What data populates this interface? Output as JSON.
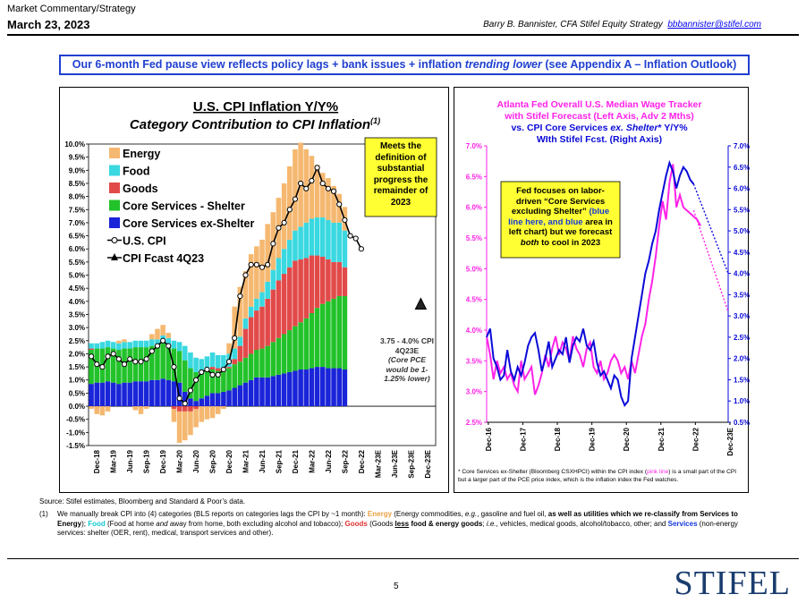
{
  "header": {
    "section": "Market Commentary/Strategy",
    "date": "March 23, 2023",
    "author": "Barry B. Bannister, CFA Stifel Equity Strategy",
    "email": "bbbannister@stifel.com"
  },
  "banner": {
    "lead": "Our 6-month Fed pause view reflects policy lags + bank issues + inflation ",
    "italic": "trending lower",
    "tail": " (see Appendix A – Inflation Outlook)"
  },
  "colors": {
    "energy": "#f5b870",
    "food": "#3ad8e0",
    "goods": "#e24a4a",
    "shelter": "#22c22a",
    "core_ex_shelter": "#1a24d8",
    "wage": "#ff22e8",
    "core_ex_shelter_line": "#0a0ad8",
    "banner": "#1f3fd0",
    "note_bg": "#ffff33"
  },
  "chart_data": [
    {
      "type": "bar",
      "stacked": true,
      "title": "U.S. CPI Inflation Y/Y%",
      "subtitle": "Category Contribution to CPI Inflation",
      "subtitle_sup": "(1)",
      "ylim": [
        -1.5,
        10.0
      ],
      "y_step": 0.5,
      "x_tick_labels": [
        "Dec-18",
        "Mar-19",
        "Jun-19",
        "Sep-19",
        "Dec-19",
        "Mar-20",
        "Jun-20",
        "Sep-20",
        "Dec-20",
        "Mar-21",
        "Jun-21",
        "Sep-21",
        "Dec-21",
        "Mar-22",
        "Jun-22",
        "Sep-22",
        "Dec-22",
        "Mar-23E",
        "Jun-23E",
        "Sep-23E",
        "Dec-23E"
      ],
      "legend": [
        "Energy",
        "Food",
        "Goods",
        "Core Services - Shelter",
        "Core Services ex-Shelter",
        "U.S. CPI",
        "CPI Fcast 4Q23"
      ],
      "series": [
        {
          "name": "Core Services ex-Shelter",
          "values": [
            0.85,
            0.9,
            0.9,
            0.95,
            0.9,
            0.85,
            0.9,
            0.9,
            0.95,
            0.95,
            0.95,
            1.0,
            1.0,
            1.05,
            1.0,
            0.95,
            0.9,
            0.55,
            0.3,
            0.2,
            0.3,
            0.4,
            0.5,
            0.5,
            0.55,
            0.6,
            0.7,
            0.8,
            0.9,
            1.0,
            1.1,
            1.1,
            1.1,
            1.15,
            1.2,
            1.25,
            1.3,
            1.35,
            1.4,
            1.4,
            1.45,
            1.5,
            1.5,
            1.45,
            1.45,
            1.45,
            1.4
          ]
        },
        {
          "name": "Core Services - Shelter",
          "values": [
            1.3,
            1.3,
            1.3,
            1.3,
            1.3,
            1.3,
            1.3,
            1.3,
            1.3,
            1.3,
            1.3,
            1.3,
            1.3,
            1.35,
            1.3,
            1.25,
            1.2,
            1.2,
            1.15,
            1.1,
            1.0,
            0.95,
            0.9,
            0.85,
            0.85,
            0.85,
            0.9,
            0.9,
            0.95,
            1.0,
            1.05,
            1.1,
            1.2,
            1.3,
            1.4,
            1.5,
            1.6,
            1.7,
            1.8,
            1.95,
            2.1,
            2.25,
            2.4,
            2.55,
            2.65,
            2.75,
            2.8
          ]
        },
        {
          "name": "Goods",
          "values": [
            0.05,
            0.0,
            0.0,
            0.0,
            0.0,
            0.0,
            0.0,
            0.0,
            0.0,
            0.0,
            0.0,
            0.0,
            0.0,
            0.0,
            0.0,
            -0.1,
            -0.2,
            -0.2,
            -0.2,
            -0.1,
            0.0,
            0.05,
            0.1,
            0.1,
            0.05,
            0.05,
            0.2,
            0.6,
            1.1,
            1.4,
            1.5,
            1.6,
            1.8,
            2.0,
            2.2,
            2.3,
            2.4,
            2.5,
            2.4,
            2.3,
            2.2,
            2.0,
            1.8,
            1.6,
            1.4,
            1.3,
            1.1
          ]
        },
        {
          "name": "Food",
          "values": [
            0.2,
            0.2,
            0.25,
            0.25,
            0.25,
            0.25,
            0.25,
            0.25,
            0.25,
            0.25,
            0.25,
            0.25,
            0.25,
            0.3,
            0.3,
            0.3,
            0.35,
            0.55,
            0.6,
            0.55,
            0.5,
            0.5,
            0.55,
            0.5,
            0.5,
            0.5,
            0.4,
            0.35,
            0.4,
            0.4,
            0.45,
            0.55,
            0.65,
            0.75,
            0.85,
            0.95,
            1.05,
            1.15,
            1.25,
            1.35,
            1.4,
            1.45,
            1.5,
            1.5,
            1.5,
            1.5,
            1.4
          ]
        },
        {
          "name": "Energy",
          "values": [
            -0.1,
            -0.3,
            -0.35,
            -0.2,
            0.0,
            0.1,
            0.1,
            0.0,
            -0.15,
            -0.3,
            -0.1,
            0.2,
            0.4,
            0.4,
            0.2,
            -0.5,
            -1.2,
            -1.1,
            -0.9,
            -0.7,
            -0.6,
            -0.5,
            -0.45,
            -0.3,
            -0.1,
            0.4,
            1.6,
            1.9,
            1.8,
            2.0,
            2.0,
            2.0,
            2.2,
            2.2,
            2.3,
            2.5,
            2.8,
            3.1,
            3.2,
            2.8,
            2.4,
            2.0,
            1.7,
            1.6,
            1.4,
            1.1,
            0.9
          ]
        },
        {
          "name": "U.S. CPI",
          "values": [
            1.9,
            1.6,
            1.5,
            1.9,
            2.0,
            1.8,
            1.6,
            1.8,
            1.7,
            1.7,
            1.8,
            2.1,
            2.3,
            2.5,
            2.3,
            1.5,
            0.3,
            0.1,
            0.6,
            1.0,
            1.3,
            1.4,
            1.2,
            1.2,
            1.4,
            1.7,
            2.6,
            4.2,
            5.0,
            5.4,
            5.4,
            5.3,
            5.4,
            6.2,
            6.8,
            7.0,
            7.5,
            7.9,
            8.5,
            8.3,
            8.6,
            9.1,
            8.5,
            8.3,
            8.2,
            7.7,
            7.1,
            6.5,
            6.4,
            6.0
          ]
        },
        {
          "name": "CPI Fcast 4Q23",
          "values": [
            3.75,
            4.0
          ]
        }
      ],
      "fcast_label": "3.75 - 4.0% CPI 4Q23E",
      "fcast_note": "(Core PCE would be 1-1.25% lower)",
      "note": "Meets the definition of substantial progress the remainder of 2023"
    },
    {
      "type": "line",
      "title_lines": [
        "Atlanta Fed Overall U.S. Median Wage Tracker",
        "with Stifel Forecast (Left Axis, Adv 2 Mths)"
      ],
      "title_line3_pre": "vs. CPI Core Services ",
      "title_line3_it": "ex. Shelter",
      "title_line3_post": "* Y/Y%",
      "title_line4": "WIth Stifel Fcst. (Right Axis)",
      "x_tick_labels": [
        "Dec-16",
        "Dec-17",
        "Dec-18",
        "Dec-19",
        "Dec-20",
        "Dec-21",
        "Dec-22",
        "Dec-23E"
      ],
      "left_ylim": [
        2.5,
        7.0
      ],
      "right_ylim": [
        0.5,
        7.0
      ],
      "left_ticks": [
        "2.5%",
        "3.0%",
        "3.5%",
        "4.0%",
        "4.5%",
        "5.0%",
        "5.5%",
        "6.0%",
        "6.5%",
        "7.0%"
      ],
      "right_ticks": [
        "0.5%",
        "1.0%",
        "1.5%",
        "2.0%",
        "2.5%",
        "3.0%",
        "3.5%",
        "4.0%",
        "4.5%",
        "5.0%",
        "5.5%",
        "6.0%",
        "6.5%",
        "7.0%"
      ],
      "series": [
        {
          "name": "Atlanta Fed Overall U.S. Median Wage Tracker",
          "axis": "left",
          "x": [
            2016.9,
            2017.0,
            2017.1,
            2017.2,
            2017.3,
            2017.4,
            2017.5,
            2017.6,
            2017.7,
            2017.8,
            2017.9,
            2018.0,
            2018.1,
            2018.2,
            2018.3,
            2018.4,
            2018.5,
            2018.6,
            2018.7,
            2018.8,
            2018.9,
            2019.0,
            2019.1,
            2019.2,
            2019.3,
            2019.4,
            2019.5,
            2019.6,
            2019.7,
            2019.8,
            2019.9,
            2020.0,
            2020.1,
            2020.2,
            2020.3,
            2020.4,
            2020.5,
            2020.6,
            2020.7,
            2020.8,
            2020.9,
            2021.0,
            2021.1,
            2021.2,
            2021.3,
            2021.4,
            2021.5,
            2021.6,
            2021.7,
            2021.8,
            2021.9,
            2022.0,
            2022.1,
            2022.2,
            2022.3,
            2022.4,
            2022.5,
            2022.6,
            2022.7,
            2022.8,
            2022.9,
            2023.0,
            2023.1
          ],
          "values": [
            3.9,
            3.6,
            3.2,
            3.5,
            3.3,
            3.4,
            3.2,
            3.3,
            3.1,
            3.0,
            3.5,
            3.2,
            3.3,
            3.4,
            2.95,
            3.1,
            3.3,
            3.6,
            3.4,
            3.7,
            3.9,
            3.6,
            3.8,
            3.7,
            3.5,
            3.9,
            3.7,
            3.6,
            3.4,
            3.7,
            3.8,
            3.4,
            3.3,
            3.5,
            3.2,
            3.3,
            3.5,
            3.6,
            3.5,
            3.3,
            3.4,
            3.2,
            3.5,
            3.3,
            3.6,
            3.9,
            4.1,
            4.5,
            4.8,
            5.2,
            5.7,
            6.1,
            5.8,
            6.4,
            6.7,
            6.0,
            6.2,
            6.0,
            5.95,
            5.9,
            5.85,
            5.8,
            5.7
          ]
        },
        {
          "name": "CPI Core Services ex. Shelter",
          "axis": "right",
          "x": [
            2016.9,
            2017.0,
            2017.1,
            2017.2,
            2017.3,
            2017.4,
            2017.5,
            2017.6,
            2017.7,
            2017.8,
            2017.9,
            2018.0,
            2018.1,
            2018.2,
            2018.3,
            2018.4,
            2018.5,
            2018.6,
            2018.7,
            2018.8,
            2018.9,
            2019.0,
            2019.1,
            2019.2,
            2019.3,
            2019.4,
            2019.5,
            2019.6,
            2019.7,
            2019.8,
            2019.9,
            2020.0,
            2020.1,
            2020.2,
            2020.3,
            2020.4,
            2020.5,
            2020.6,
            2020.7,
            2020.8,
            2020.9,
            2021.0,
            2021.1,
            2021.2,
            2021.3,
            2021.4,
            2021.5,
            2021.6,
            2021.7,
            2021.8,
            2021.9,
            2022.0,
            2022.1,
            2022.2,
            2022.3,
            2022.4,
            2022.5,
            2022.6,
            2022.7,
            2022.8,
            2022.9
          ],
          "values": [
            2.5,
            2.7,
            2.0,
            1.8,
            1.5,
            1.6,
            2.2,
            1.7,
            1.5,
            1.8,
            1.6,
            1.9,
            2.3,
            2.5,
            2.6,
            2.2,
            1.7,
            2.0,
            2.4,
            1.8,
            2.0,
            2.2,
            2.1,
            2.5,
            1.9,
            2.3,
            2.5,
            2.4,
            2.7,
            2.3,
            2.2,
            2.4,
            1.9,
            1.6,
            1.7,
            1.5,
            1.3,
            1.6,
            1.5,
            1.1,
            0.9,
            1.0,
            2.0,
            2.5,
            3.0,
            3.5,
            4.0,
            4.3,
            4.7,
            5.0,
            5.5,
            5.9,
            6.3,
            6.6,
            6.4,
            6.0,
            6.3,
            6.5,
            6.4,
            6.2,
            6.1
          ]
        },
        {
          "name": "Stifel Fcst. (dotted)",
          "axis": "left",
          "x": [
            2022.9,
            2023.9
          ],
          "values": [
            5.95,
            4.3
          ]
        },
        {
          "name": "Stifel Fcst. (dotted)",
          "axis": "right",
          "x": [
            2022.9,
            2023.9
          ],
          "values": [
            6.1,
            4.0
          ]
        }
      ],
      "note_text_pre": "Fed focuses on labor-driven “Core Services excluding Shelter” ",
      "note_text_blue1": "(blue line here, and ",
      "note_text_blue2": "blue",
      "note_text_mid": " area in left chart) but we forecast ",
      "note_text_it": "both",
      "note_text_post": " to cool in 2023",
      "footnote_pre": "* Core Services ex-Shelter (Bloomberg CSXHPCI) within the CPI index (",
      "footnote_pink": "pink line",
      "footnote_post": ") is a small part of the CPI but a larger part of the PCE price index, which is the inflation index the Fed watches."
    }
  ],
  "source": "Source: Stifel estimates, Bloomberg and Standard & Poor’s data.",
  "footnote": {
    "num": "(1)",
    "t1": "We manually break CPI into (4) categories (BLS reports on categories lags the CPI by ~1 month): ",
    "energy": "Energy",
    "t2": " (Energy commodities, ",
    "eg": "e.g.",
    "t3": ", gasoline and fuel oil, ",
    "t4": "as well as utilities which we re-classify from Services to Energy",
    "t5": "); ",
    "food": "Food",
    "t6": " (Food at home ",
    "and": "and",
    "t7": " away from home, both excluding alcohol and tobacco); ",
    "goods": "Goods",
    "t8": " (Goods ",
    "less": "less",
    "t9": " food & energy goods",
    "t10": "; ",
    "ie": "i.e.",
    "t11": ", vehicles, medical goods, alcohol/tobacco, other; and ",
    "services": "Services",
    "t12": " (non-energy services: shelter (OER, rent), medical, transport services and other)."
  },
  "page_number": "5",
  "logo": "STIFEL"
}
